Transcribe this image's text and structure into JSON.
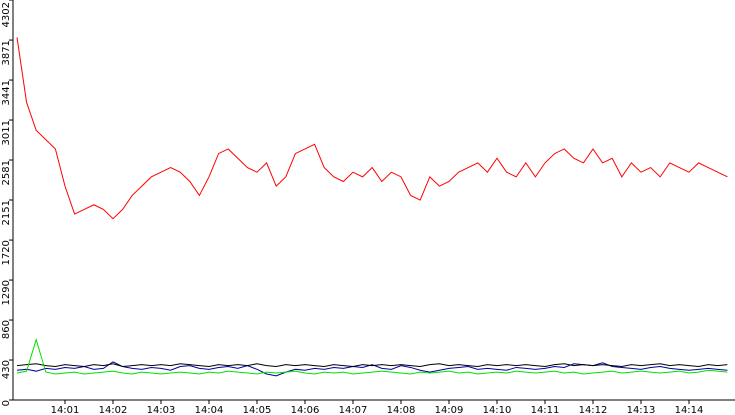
{
  "chart_data": {
    "type": "line",
    "categories": [
      null,
      null,
      null,
      null,
      null,
      "14:01",
      null,
      null,
      null,
      null,
      "14:02",
      null,
      null,
      null,
      null,
      "14:03",
      null,
      null,
      null,
      null,
      "14:04",
      null,
      null,
      null,
      null,
      "14:05",
      null,
      null,
      null,
      null,
      "14:06",
      null,
      null,
      null,
      null,
      "14:07",
      null,
      null,
      null,
      null,
      "14:08",
      null,
      null,
      null,
      null,
      "14:09",
      null,
      null,
      null,
      null,
      "14:10",
      null,
      null,
      null,
      null,
      "14:11",
      null,
      null,
      null,
      null,
      "14:12",
      null,
      null,
      null,
      null,
      "14:13",
      null,
      null,
      null,
      null,
      "14:14",
      null,
      null,
      null,
      null
    ],
    "series": [
      {
        "color": "#ff0000",
        "values": [
          3900,
          3200,
          2900,
          2800,
          2700,
          2300,
          2000,
          2050,
          2100,
          2050,
          1950,
          2050,
          2200,
          2300,
          2400,
          2450,
          2500,
          2450,
          2350,
          2200,
          2400,
          2650,
          2700,
          2600,
          2500,
          2450,
          2550,
          2300,
          2400,
          2650,
          2700,
          2750,
          2500,
          2400,
          2350,
          2450,
          2400,
          2500,
          2350,
          2450,
          2400,
          2200,
          2150,
          2400,
          2300,
          2350,
          2450,
          2500,
          2550,
          2450,
          2600,
          2450,
          2400,
          2550,
          2400,
          2550,
          2650,
          2700,
          2600,
          2550,
          2700,
          2550,
          2600,
          2400,
          2550,
          2450,
          2500,
          2400,
          2550,
          2500,
          2450,
          2550,
          2500,
          2450,
          2400
        ]
      },
      {
        "color": "#0000a0",
        "values": [
          320,
          330,
          310,
          340,
          330,
          350,
          340,
          360,
          330,
          340,
          410,
          360,
          340,
          330,
          350,
          340,
          320,
          360,
          370,
          340,
          330,
          350,
          360,
          340,
          370,
          330,
          280,
          260,
          300,
          330,
          320,
          340,
          330,
          350,
          340,
          360,
          350,
          380,
          340,
          330,
          370,
          350,
          320,
          300,
          320,
          340,
          350,
          360,
          330,
          340,
          330,
          320,
          350,
          340,
          330,
          340,
          360,
          350,
          390,
          380,
          370,
          400,
          360,
          350,
          340,
          330,
          350,
          360,
          340,
          330,
          320,
          330,
          340,
          330,
          320
        ]
      },
      {
        "color": "#000000",
        "values": [
          370,
          380,
          390,
          370,
          360,
          380,
          370,
          360,
          380,
          370,
          390,
          360,
          370,
          380,
          370,
          380,
          370,
          390,
          380,
          370,
          360,
          380,
          370,
          380,
          370,
          390,
          370,
          360,
          380,
          370,
          380,
          370,
          360,
          380,
          370,
          360,
          380,
          370,
          380,
          370,
          380,
          370,
          360,
          380,
          390,
          370,
          380,
          370,
          360,
          380,
          370,
          380,
          370,
          380,
          370,
          360,
          380,
          390,
          370,
          380,
          370,
          380,
          370,
          360,
          380,
          370,
          380,
          390,
          370,
          380,
          370,
          360,
          380,
          370,
          380
        ]
      },
      {
        "color": "#00e000",
        "values": [
          290,
          310,
          650,
          300,
          280,
          290,
          300,
          280,
          290,
          300,
          310,
          290,
          280,
          300,
          290,
          280,
          290,
          300,
          290,
          280,
          300,
          290,
          310,
          300,
          290,
          280,
          300,
          290,
          300,
          310,
          290,
          280,
          300,
          290,
          300,
          280,
          290,
          300,
          310,
          300,
          290,
          280,
          300,
          290,
          300,
          310,
          290,
          300,
          280,
          290,
          300,
          290,
          310,
          300,
          290,
          300,
          310,
          290,
          300,
          280,
          290,
          300,
          310,
          290,
          300,
          310,
          300,
          290,
          300,
          310,
          290,
          300,
          320,
          310,
          300
        ]
      }
    ],
    "ylim": [
      0,
      4302
    ],
    "yticks": [
      0,
      430,
      860,
      1290,
      1720,
      2151,
      2581,
      3011,
      3441,
      3871,
      4302
    ]
  }
}
